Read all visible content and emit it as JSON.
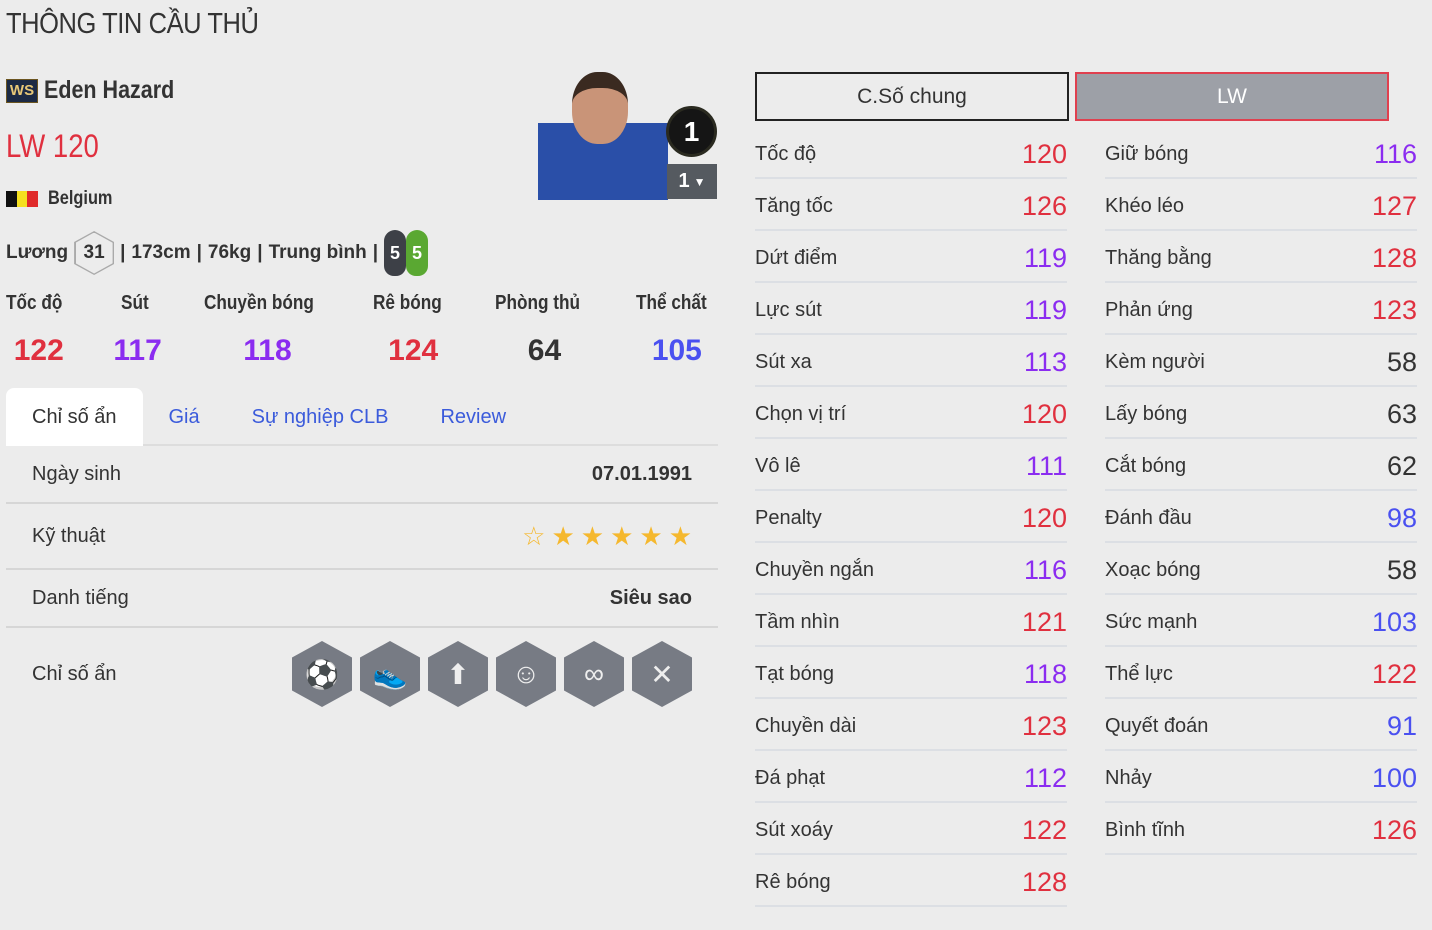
{
  "page_title": "THÔNG TIN CẦU THỦ",
  "player": {
    "season_badge": "WS",
    "name": "Eden Hazard",
    "position": "LW",
    "ovr": "120",
    "nation": "Belgium",
    "salary_label": "Lương",
    "salary": "31",
    "height": "173cm",
    "weight": "76kg",
    "body": "Trung bình",
    "left_foot": "5",
    "right_foot": "5",
    "grade": "1",
    "level": "1"
  },
  "colors": {
    "red": "#e0303f",
    "purple": "#8b2cf0",
    "blue": "#4a50f0",
    "dark": "#333333"
  },
  "summary": [
    {
      "label": "Tốc độ",
      "value": "122",
      "color": "red"
    },
    {
      "label": "Sút",
      "value": "117",
      "color": "purple"
    },
    {
      "label": "Chuyền bóng",
      "value": "118",
      "color": "purple"
    },
    {
      "label": "Rê bóng",
      "value": "124",
      "color": "red"
    },
    {
      "label": "Phòng thủ",
      "value": "64",
      "color": "dark"
    },
    {
      "label": "Thể chất",
      "value": "105",
      "color": "blue"
    }
  ],
  "tabs": [
    "Chỉ số ẩn",
    "Giá",
    "Sự nghiệp CLB",
    "Review"
  ],
  "info": {
    "birth_label": "Ngày sinh",
    "birth": "07.01.1991",
    "skill_label": "Kỹ thuật",
    "skill_stars": 5,
    "skill_max": 6,
    "rep_label": "Danh tiếng",
    "rep": "Siêu sao",
    "traits_label": "Chỉ số ẩn",
    "traits": [
      "finesse-shot-icon",
      "flair-icon",
      "power-header-icon",
      "selfish-icon",
      "speed-dribbler-icon",
      "long-shot-icon"
    ]
  },
  "stat_buttons": {
    "general": "C.Số chung",
    "position": "LW"
  },
  "stats_left": [
    {
      "label": "Tốc độ",
      "value": "120",
      "color": "red"
    },
    {
      "label": "Tăng tốc",
      "value": "126",
      "color": "red"
    },
    {
      "label": "Dứt điểm",
      "value": "119",
      "color": "purple"
    },
    {
      "label": "Lực sút",
      "value": "119",
      "color": "purple"
    },
    {
      "label": "Sút xa",
      "value": "113",
      "color": "purple"
    },
    {
      "label": "Chọn vị trí",
      "value": "120",
      "color": "red"
    },
    {
      "label": "Vô lê",
      "value": "111",
      "color": "purple"
    },
    {
      "label": "Penalty",
      "value": "120",
      "color": "red"
    },
    {
      "label": "Chuyền ngắn",
      "value": "116",
      "color": "purple"
    },
    {
      "label": "Tầm nhìn",
      "value": "121",
      "color": "red"
    },
    {
      "label": "Tạt bóng",
      "value": "118",
      "color": "purple"
    },
    {
      "label": "Chuyền dài",
      "value": "123",
      "color": "red"
    },
    {
      "label": "Đá phạt",
      "value": "112",
      "color": "purple"
    },
    {
      "label": "Sút xoáy",
      "value": "122",
      "color": "red"
    },
    {
      "label": "Rê bóng",
      "value": "128",
      "color": "red"
    }
  ],
  "stats_right": [
    {
      "label": "Giữ bóng",
      "value": "116",
      "color": "purple"
    },
    {
      "label": "Khéo léo",
      "value": "127",
      "color": "red"
    },
    {
      "label": "Thăng bằng",
      "value": "128",
      "color": "red"
    },
    {
      "label": "Phản ứng",
      "value": "123",
      "color": "red"
    },
    {
      "label": "Kèm người",
      "value": "58",
      "color": "dark"
    },
    {
      "label": "Lấy bóng",
      "value": "63",
      "color": "dark"
    },
    {
      "label": "Cắt bóng",
      "value": "62",
      "color": "dark"
    },
    {
      "label": "Đánh đầu",
      "value": "98",
      "color": "blue"
    },
    {
      "label": "Xoạc bóng",
      "value": "58",
      "color": "dark"
    },
    {
      "label": "Sức mạnh",
      "value": "103",
      "color": "blue"
    },
    {
      "label": "Thể lực",
      "value": "122",
      "color": "red"
    },
    {
      "label": "Quyết đoán",
      "value": "91",
      "color": "blue"
    },
    {
      "label": "Nhảy",
      "value": "100",
      "color": "blue"
    },
    {
      "label": "Bình tĩnh",
      "value": "126",
      "color": "red"
    }
  ]
}
